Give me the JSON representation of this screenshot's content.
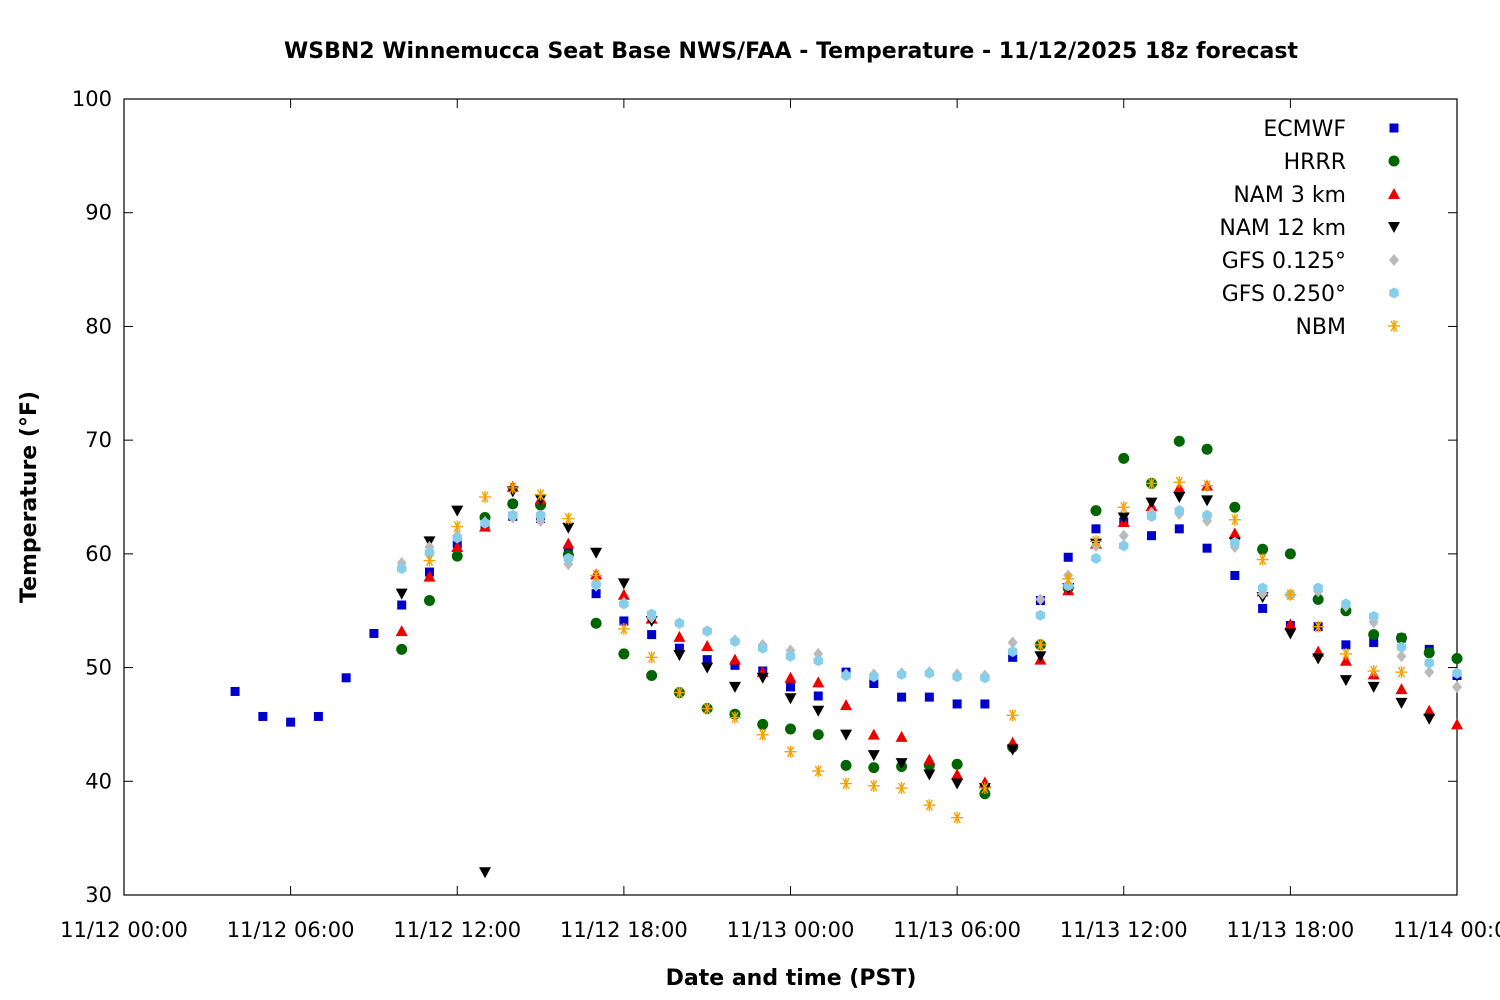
{
  "chart_data": {
    "type": "scatter",
    "title": "WSBN2 Winnemucca Seat Base NWS/FAA - Temperature - 11/12/2025 18z forecast",
    "xlabel": "Date and time (PST)",
    "ylabel": "Temperature (°F)",
    "xlim": [
      0,
      48
    ],
    "ylim": [
      30,
      100
    ],
    "x_unit": "hours since 11/12 00:00",
    "x_ticks": [
      {
        "value": 0,
        "label": "11/12 00:00"
      },
      {
        "value": 6,
        "label": "11/12 06:00"
      },
      {
        "value": 12,
        "label": "11/12 12:00"
      },
      {
        "value": 18,
        "label": "11/12 18:00"
      },
      {
        "value": 24,
        "label": "11/13 00:00"
      },
      {
        "value": 30,
        "label": "11/13 06:00"
      },
      {
        "value": 36,
        "label": "11/13 12:00"
      },
      {
        "value": 42,
        "label": "11/13 18:00"
      },
      {
        "value": 48,
        "label": "11/14 00:00"
      }
    ],
    "y_ticks": [
      30,
      40,
      50,
      60,
      70,
      80,
      90,
      100
    ],
    "legend_position": "top-right",
    "grid": false,
    "series": [
      {
        "name": "ECMWF",
        "marker": "square",
        "color": "#0000cc",
        "x": [
          4,
          5,
          6,
          7,
          8,
          9,
          10,
          11,
          12,
          13,
          14,
          15,
          16,
          17,
          18,
          19,
          20,
          21,
          22,
          23,
          24,
          25,
          26,
          27,
          28,
          29,
          30,
          31,
          32,
          33,
          34,
          35,
          36,
          37,
          38,
          39,
          40,
          41,
          42,
          43,
          44,
          45,
          46,
          47,
          48
        ],
        "y": [
          47.9,
          45.7,
          45.2,
          45.7,
          49.1,
          53.0,
          55.5,
          58.4,
          60.9,
          62.6,
          63.3,
          63.1,
          60.3,
          56.5,
          54.1,
          52.9,
          51.7,
          50.7,
          50.2,
          49.7,
          48.3,
          47.5,
          49.6,
          48.6,
          47.4,
          47.4,
          46.8,
          46.8,
          50.9,
          55.9,
          59.7,
          62.2,
          62.8,
          61.6,
          62.2,
          60.5,
          58.1,
          55.2,
          53.7,
          53.6,
          52.0,
          52.2,
          52.6,
          51.6,
          49.3
        ]
      },
      {
        "name": "HRRR",
        "marker": "circle",
        "color": "#006400",
        "x": [
          10,
          11,
          12,
          13,
          14,
          15,
          16,
          17,
          18,
          19,
          20,
          21,
          22,
          23,
          24,
          25,
          26,
          27,
          28,
          29,
          30,
          31,
          32,
          33,
          34,
          35,
          36,
          37,
          38,
          39,
          40,
          41,
          42,
          43,
          44,
          45,
          46,
          47,
          48
        ],
        "y": [
          51.6,
          55.9,
          59.8,
          63.2,
          64.4,
          64.3,
          59.9,
          53.9,
          51.2,
          49.3,
          47.8,
          46.4,
          45.9,
          45.0,
          44.6,
          44.1,
          41.4,
          41.2,
          41.3,
          41.4,
          41.5,
          38.9,
          43.0,
          52.0,
          57.0,
          63.8,
          68.4,
          66.2,
          69.9,
          69.2,
          64.1,
          60.4,
          60.0,
          56.0,
          55.0,
          52.9,
          52.6,
          51.3,
          50.8
        ]
      },
      {
        "name": "NAM 3 km",
        "marker": "triangle-up",
        "color": "#ee0000",
        "x": [
          10,
          11,
          12,
          13,
          14,
          15,
          16,
          17,
          18,
          19,
          20,
          21,
          22,
          23,
          24,
          25,
          26,
          27,
          28,
          29,
          30,
          31,
          32,
          33,
          34,
          35,
          36,
          37,
          38,
          39,
          40,
          41,
          42,
          43,
          44,
          45,
          46,
          47,
          48
        ],
        "y": [
          53.2,
          58.0,
          60.6,
          62.4,
          65.9,
          64.8,
          60.9,
          58.2,
          56.4,
          54.3,
          52.7,
          51.9,
          50.7,
          49.6,
          49.1,
          48.7,
          46.7,
          44.1,
          43.9,
          41.9,
          40.6,
          39.9,
          43.4,
          50.7,
          56.8,
          60.9,
          62.8,
          64.2,
          65.8,
          66.0,
          61.8,
          56.7,
          53.8,
          51.4,
          50.6,
          49.4,
          48.1,
          46.2,
          45.0
        ]
      },
      {
        "name": "NAM 12 km",
        "marker": "triangle-down",
        "color": "#000000",
        "x": [
          10,
          11,
          12,
          13,
          14,
          15,
          16,
          17,
          18,
          19,
          20,
          21,
          22,
          23,
          24,
          25,
          26,
          27,
          28,
          29,
          30,
          31,
          32,
          33,
          34,
          35,
          36,
          37,
          38,
          39,
          40,
          41,
          42,
          43,
          44,
          45,
          46,
          47
        ],
        "y": [
          56.5,
          61.1,
          63.8,
          32.0,
          65.5,
          64.8,
          62.3,
          60.1,
          57.4,
          54.1,
          51.1,
          50.0,
          48.3,
          49.1,
          47.3,
          46.2,
          44.1,
          42.3,
          41.6,
          40.6,
          39.8,
          39.4,
          42.8,
          51.0,
          57.0,
          60.9,
          63.2,
          64.5,
          65.0,
          64.7,
          61.0,
          56.2,
          53.0,
          50.8,
          48.9,
          48.3,
          46.9,
          45.5
        ]
      },
      {
        "name": "GFS 0.125°",
        "marker": "diamond",
        "color": "#bbbbbb",
        "x": [
          10,
          11,
          12,
          13,
          14,
          15,
          16,
          17,
          18,
          19,
          20,
          21,
          22,
          23,
          24,
          25,
          26,
          27,
          28,
          29,
          30,
          31,
          32,
          33,
          34,
          35,
          36,
          37,
          38,
          39,
          40,
          41,
          42,
          43,
          44,
          45,
          46,
          47,
          48
        ],
        "y": [
          59.2,
          60.6,
          61.6,
          62.8,
          63.2,
          62.9,
          59.1,
          57.2,
          55.7,
          54.4,
          53.9,
          53.2,
          52.4,
          52.0,
          51.5,
          51.2,
          49.4,
          49.4,
          49.5,
          49.6,
          49.4,
          49.3,
          52.2,
          56.0,
          58.1,
          60.7,
          61.6,
          63.6,
          63.5,
          62.9,
          60.6,
          56.5,
          56.4,
          56.7,
          55.4,
          54.0,
          51.0,
          49.6,
          48.3
        ]
      },
      {
        "name": "GFS 0.250°",
        "marker": "hexagon",
        "color": "#87ceeb",
        "x": [
          10,
          11,
          12,
          13,
          14,
          15,
          16,
          17,
          18,
          19,
          20,
          21,
          22,
          23,
          24,
          25,
          26,
          27,
          28,
          29,
          30,
          31,
          32,
          33,
          34,
          35,
          36,
          37,
          38,
          39,
          40,
          41,
          42,
          43,
          44,
          45,
          46,
          47,
          48
        ],
        "y": [
          58.7,
          60.1,
          61.4,
          62.7,
          63.4,
          63.4,
          59.6,
          57.3,
          55.6,
          54.7,
          53.9,
          53.2,
          52.3,
          51.7,
          51.0,
          50.6,
          49.3,
          49.2,
          49.4,
          49.5,
          49.2,
          49.1,
          51.4,
          54.6,
          57.2,
          59.6,
          60.7,
          63.3,
          63.8,
          63.4,
          61.0,
          57.0,
          56.4,
          57.0,
          55.6,
          54.5,
          51.8,
          50.4,
          49.5
        ]
      },
      {
        "name": "NBM",
        "marker": "asterisk",
        "color": "#f5a300",
        "x": [
          11,
          12,
          13,
          14,
          15,
          16,
          17,
          18,
          19,
          20,
          21,
          22,
          23,
          24,
          25,
          26,
          27,
          28,
          29,
          30,
          31,
          32,
          33,
          34,
          35,
          36,
          37,
          38,
          39,
          40,
          41,
          42,
          43,
          44,
          45,
          46
        ],
        "y": [
          59.4,
          62.4,
          65.0,
          65.8,
          65.2,
          63.1,
          58.1,
          53.4,
          50.9,
          47.8,
          46.4,
          45.6,
          44.1,
          42.6,
          40.9,
          39.8,
          39.6,
          39.4,
          37.9,
          36.8,
          39.4,
          45.8,
          52.0,
          57.8,
          61.1,
          64.1,
          66.2,
          66.3,
          66.0,
          63.0,
          59.5,
          56.4,
          53.6,
          51.2,
          49.7,
          49.6
        ]
      }
    ]
  }
}
